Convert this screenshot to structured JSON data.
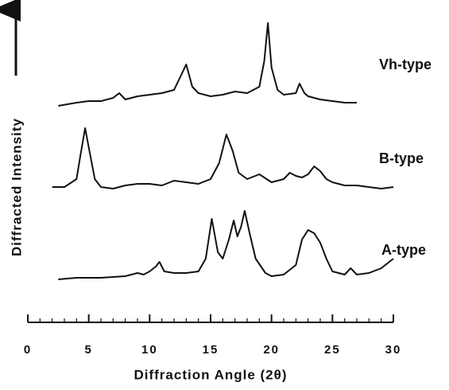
{
  "chart_data": {
    "type": "line",
    "x_label": "Diffraction Angle (2θ)",
    "y_label": "Diffracted Intensity",
    "xlim": [
      0,
      30
    ],
    "xticks": [
      0,
      5,
      10,
      15,
      20,
      25,
      30
    ],
    "xminor": 1,
    "ylim": [
      0,
      100
    ],
    "series": [
      {
        "name": "Vh-type",
        "color": "#111111",
        "x": [
          2.5,
          4,
          5,
          6,
          7,
          7.5,
          8,
          9,
          10,
          11,
          12,
          12.5,
          13,
          13.5,
          14,
          15,
          16,
          17,
          18,
          19,
          19.4,
          19.7,
          20,
          20.5,
          21,
          22,
          22.3,
          22.7,
          23,
          24,
          25,
          26,
          27
        ],
        "values": [
          68,
          69,
          69.5,
          69.5,
          70.5,
          72,
          70,
          71,
          71.5,
          72,
          73,
          77,
          81,
          74,
          72,
          71,
          71.5,
          72.5,
          72,
          74,
          82,
          94,
          80,
          73,
          71.5,
          72,
          75,
          72,
          71,
          70,
          69.5,
          69,
          69
        ]
      },
      {
        "name": "B-type",
        "color": "#111111",
        "x": [
          2,
          3,
          4,
          4.3,
          4.7,
          5.1,
          5.5,
          6,
          7,
          8,
          9,
          10,
          11,
          12,
          13,
          14,
          15,
          15.7,
          16.3,
          16.8,
          17.3,
          18,
          19,
          20,
          21,
          21.5,
          22,
          22.5,
          23,
          23.5,
          24,
          24.5,
          25,
          26,
          27,
          28,
          29,
          30
        ],
        "values": [
          42.5,
          42.5,
          45,
          52,
          61,
          53,
          45,
          42.5,
          42,
          43,
          43.5,
          43.5,
          43,
          44.5,
          44,
          43.5,
          45,
          50,
          59,
          54,
          47,
          45,
          46.5,
          44,
          45,
          47,
          46,
          45.5,
          46.5,
          49,
          47.5,
          45,
          44,
          43,
          43,
          42.5,
          42,
          42.5
        ]
      },
      {
        "name": "A-type",
        "color": "#111111",
        "x": [
          2.5,
          4,
          6,
          8,
          9,
          9.5,
          10,
          10.5,
          10.8,
          11.2,
          12,
          13,
          14,
          14.6,
          15.1,
          15.6,
          16,
          16.5,
          16.9,
          17.2,
          17.5,
          17.8,
          18.2,
          18.7,
          19.5,
          20,
          21,
          22,
          22.5,
          23,
          23.5,
          24,
          24.5,
          25,
          26,
          26.5,
          27,
          28,
          29,
          30
        ],
        "values": [
          13.5,
          14,
          14,
          14.5,
          15.5,
          15,
          16,
          17.5,
          19,
          16,
          15.5,
          15.5,
          16,
          20,
          32.5,
          22,
          20,
          26,
          32,
          27,
          30,
          35,
          28,
          20,
          15.5,
          14.5,
          15,
          18,
          26,
          29,
          28,
          25,
          20,
          16,
          15,
          17,
          15,
          15.5,
          17,
          20
        ]
      }
    ]
  }
}
